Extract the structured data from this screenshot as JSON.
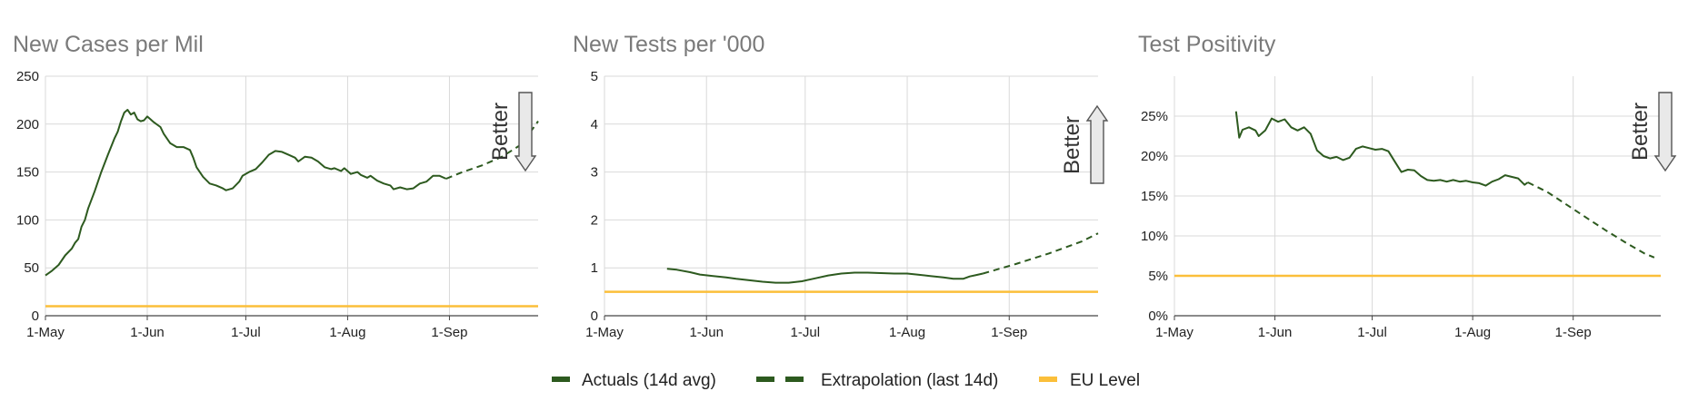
{
  "legend": [
    {
      "label": "Actuals (14d avg)",
      "style": "solid",
      "color": "#2d5a1f"
    },
    {
      "label": "Extrapolation (last 14d)",
      "style": "dashed",
      "color": "#2d5a1f"
    },
    {
      "label": "EU Level",
      "style": "solid",
      "color": "#fbbf3a"
    }
  ],
  "colors": {
    "actual": "#2d5a1f",
    "eu": "#fbbf3a",
    "grid": "#d9d9d9",
    "arrow_fill": "#e9e9e9"
  },
  "better_label": "Better",
  "chart_data": [
    {
      "type": "line",
      "title": "New Cases per Mil",
      "xlim": [
        0,
        150
      ],
      "x_ticks": [
        0,
        31,
        61,
        92,
        123
      ],
      "x_tick_labels": [
        "1-May",
        "1-Jun",
        "1-Jul",
        "1-Aug",
        "1-Sep"
      ],
      "ylim": [
        0,
        250
      ],
      "y_ticks": [
        0,
        50,
        100,
        150,
        200,
        250
      ],
      "y_tick_labels": [
        "0",
        "50",
        "100",
        "150",
        "200",
        "250"
      ],
      "better_direction": "down",
      "eu_level": 10,
      "series": [
        {
          "role": "actual",
          "points": [
            [
              0,
              42
            ],
            [
              2,
              47
            ],
            [
              4,
              53
            ],
            [
              6,
              63
            ],
            [
              8,
              70
            ],
            [
              9,
              76
            ],
            [
              10,
              80
            ],
            [
              11,
              93
            ],
            [
              12,
              100
            ],
            [
              13,
              112
            ],
            [
              15,
              130
            ],
            [
              17,
              150
            ],
            [
              19,
              168
            ],
            [
              21,
              185
            ],
            [
              22,
              192
            ],
            [
              23,
              203
            ],
            [
              24,
              212
            ],
            [
              25,
              215
            ],
            [
              26,
              210
            ],
            [
              27,
              212
            ],
            [
              28,
              205
            ],
            [
              29,
              203
            ],
            [
              30,
              204
            ],
            [
              31,
              208
            ],
            [
              32,
              205
            ],
            [
              33,
              202
            ],
            [
              35,
              197
            ],
            [
              36,
              190
            ],
            [
              38,
              180
            ],
            [
              40,
              176
            ],
            [
              42,
              176
            ],
            [
              44,
              173
            ],
            [
              45,
              165
            ],
            [
              46,
              155
            ],
            [
              48,
              145
            ],
            [
              50,
              138
            ],
            [
              52,
              136
            ],
            [
              54,
              133
            ],
            [
              55,
              131
            ],
            [
              57,
              133
            ],
            [
              59,
              140
            ],
            [
              60,
              146
            ],
            [
              62,
              150
            ],
            [
              64,
              153
            ],
            [
              66,
              160
            ],
            [
              68,
              168
            ],
            [
              70,
              172
            ],
            [
              72,
              171
            ],
            [
              74,
              168
            ],
            [
              76,
              165
            ],
            [
              77,
              161
            ],
            [
              79,
              166
            ],
            [
              81,
              165
            ],
            [
              83,
              161
            ],
            [
              85,
              155
            ],
            [
              87,
              153
            ],
            [
              88,
              154
            ],
            [
              90,
              151
            ],
            [
              91,
              154
            ],
            [
              93,
              148
            ],
            [
              95,
              150
            ],
            [
              96,
              147
            ],
            [
              98,
              144
            ],
            [
              99,
              146
            ],
            [
              101,
              141
            ],
            [
              103,
              138
            ],
            [
              105,
              136
            ],
            [
              106,
              132
            ],
            [
              108,
              134
            ],
            [
              110,
              132
            ],
            [
              112,
              133
            ],
            [
              114,
              138
            ],
            [
              116,
              140
            ],
            [
              118,
              146
            ],
            [
              120,
              146
            ],
            [
              122,
              143
            ]
          ]
        },
        {
          "role": "extrapolation",
          "points": [
            [
              122,
              143
            ],
            [
              127,
              150
            ],
            [
              133,
              157
            ],
            [
              139,
              166
            ],
            [
              145,
              179
            ],
            [
              150,
              203
            ]
          ]
        }
      ]
    },
    {
      "type": "line",
      "title": "New Tests per '000",
      "xlim": [
        0,
        150
      ],
      "x_ticks": [
        0,
        31,
        61,
        92,
        123
      ],
      "x_tick_labels": [
        "1-May",
        "1-Jun",
        "1-Jul",
        "1-Aug",
        "1-Sep"
      ],
      "ylim": [
        0,
        5
      ],
      "y_ticks": [
        0,
        1,
        2,
        3,
        4,
        5
      ],
      "y_tick_labels": [
        "0",
        "1",
        "2",
        "3",
        "4",
        "5"
      ],
      "better_direction": "up",
      "eu_level": 0.5,
      "series": [
        {
          "role": "actual",
          "points": [
            [
              19,
              0.98
            ],
            [
              22,
              0.96
            ],
            [
              26,
              0.91
            ],
            [
              29,
              0.86
            ],
            [
              33,
              0.83
            ],
            [
              37,
              0.8
            ],
            [
              40,
              0.77
            ],
            [
              44,
              0.74
            ],
            [
              48,
              0.71
            ],
            [
              52,
              0.69
            ],
            [
              56,
              0.69
            ],
            [
              60,
              0.72
            ],
            [
              64,
              0.78
            ],
            [
              68,
              0.84
            ],
            [
              72,
              0.88
            ],
            [
              76,
              0.9
            ],
            [
              80,
              0.9
            ],
            [
              84,
              0.89
            ],
            [
              88,
              0.88
            ],
            [
              92,
              0.88
            ],
            [
              95,
              0.86
            ],
            [
              99,
              0.83
            ],
            [
              103,
              0.8
            ],
            [
              106,
              0.77
            ],
            [
              109,
              0.77
            ],
            [
              111,
              0.82
            ],
            [
              113,
              0.85
            ],
            [
              115,
              0.88
            ]
          ]
        },
        {
          "role": "extrapolation",
          "points": [
            [
              115,
              0.88
            ],
            [
              125,
              1.08
            ],
            [
              135,
              1.3
            ],
            [
              145,
              1.55
            ],
            [
              150,
              1.72
            ]
          ]
        }
      ]
    },
    {
      "type": "line",
      "title": "Test Positivity",
      "xlim": [
        0,
        150
      ],
      "x_ticks": [
        0,
        31,
        61,
        92,
        123
      ],
      "x_tick_labels": [
        "1-May",
        "1-Jun",
        "1-Jul",
        "1-Aug",
        "1-Sep"
      ],
      "ylim": [
        0,
        30
      ],
      "y_ticks": [
        0,
        5,
        10,
        15,
        20,
        25
      ],
      "y_tick_labels": [
        "0%",
        "5%",
        "10%",
        "15%",
        "20%",
        "25%"
      ],
      "better_direction": "down",
      "eu_level": 5,
      "series": [
        {
          "role": "actual",
          "points": [
            [
              19,
              25.6
            ],
            [
              20,
              22.3
            ],
            [
              21,
              23.3
            ],
            [
              23,
              23.6
            ],
            [
              25,
              23.2
            ],
            [
              26,
              22.5
            ],
            [
              28,
              23.2
            ],
            [
              30,
              24.7
            ],
            [
              32,
              24.3
            ],
            [
              34,
              24.6
            ],
            [
              36,
              23.6
            ],
            [
              38,
              23.2
            ],
            [
              40,
              23.6
            ],
            [
              42,
              22.8
            ],
            [
              44,
              20.7
            ],
            [
              46,
              20
            ],
            [
              48,
              19.7
            ],
            [
              50,
              19.9
            ],
            [
              52,
              19.5
            ],
            [
              54,
              19.8
            ],
            [
              56,
              20.9
            ],
            [
              58,
              21.2
            ],
            [
              60,
              21
            ],
            [
              62,
              20.8
            ],
            [
              64,
              20.9
            ],
            [
              66,
              20.6
            ],
            [
              68,
              19.3
            ],
            [
              70,
              18
            ],
            [
              72,
              18.3
            ],
            [
              74,
              18.2
            ],
            [
              76,
              17.5
            ],
            [
              78,
              17
            ],
            [
              80,
              16.9
            ],
            [
              82,
              17
            ],
            [
              84,
              16.8
            ],
            [
              86,
              17
            ],
            [
              88,
              16.8
            ],
            [
              90,
              16.9
            ],
            [
              92,
              16.7
            ],
            [
              94,
              16.6
            ],
            [
              96,
              16.3
            ],
            [
              98,
              16.8
            ],
            [
              100,
              17.1
            ],
            [
              102,
              17.6
            ],
            [
              104,
              17.4
            ],
            [
              106,
              17.2
            ],
            [
              108,
              16.4
            ],
            [
              109,
              16.7
            ]
          ]
        },
        {
          "role": "extrapolation",
          "points": [
            [
              109,
              16.7
            ],
            [
              115,
              15.5
            ],
            [
              121,
              13.9
            ],
            [
              127,
              12.3
            ],
            [
              133,
              10.7
            ],
            [
              139,
              9.2
            ],
            [
              145,
              7.8
            ],
            [
              148,
              7.3
            ]
          ]
        }
      ]
    }
  ]
}
